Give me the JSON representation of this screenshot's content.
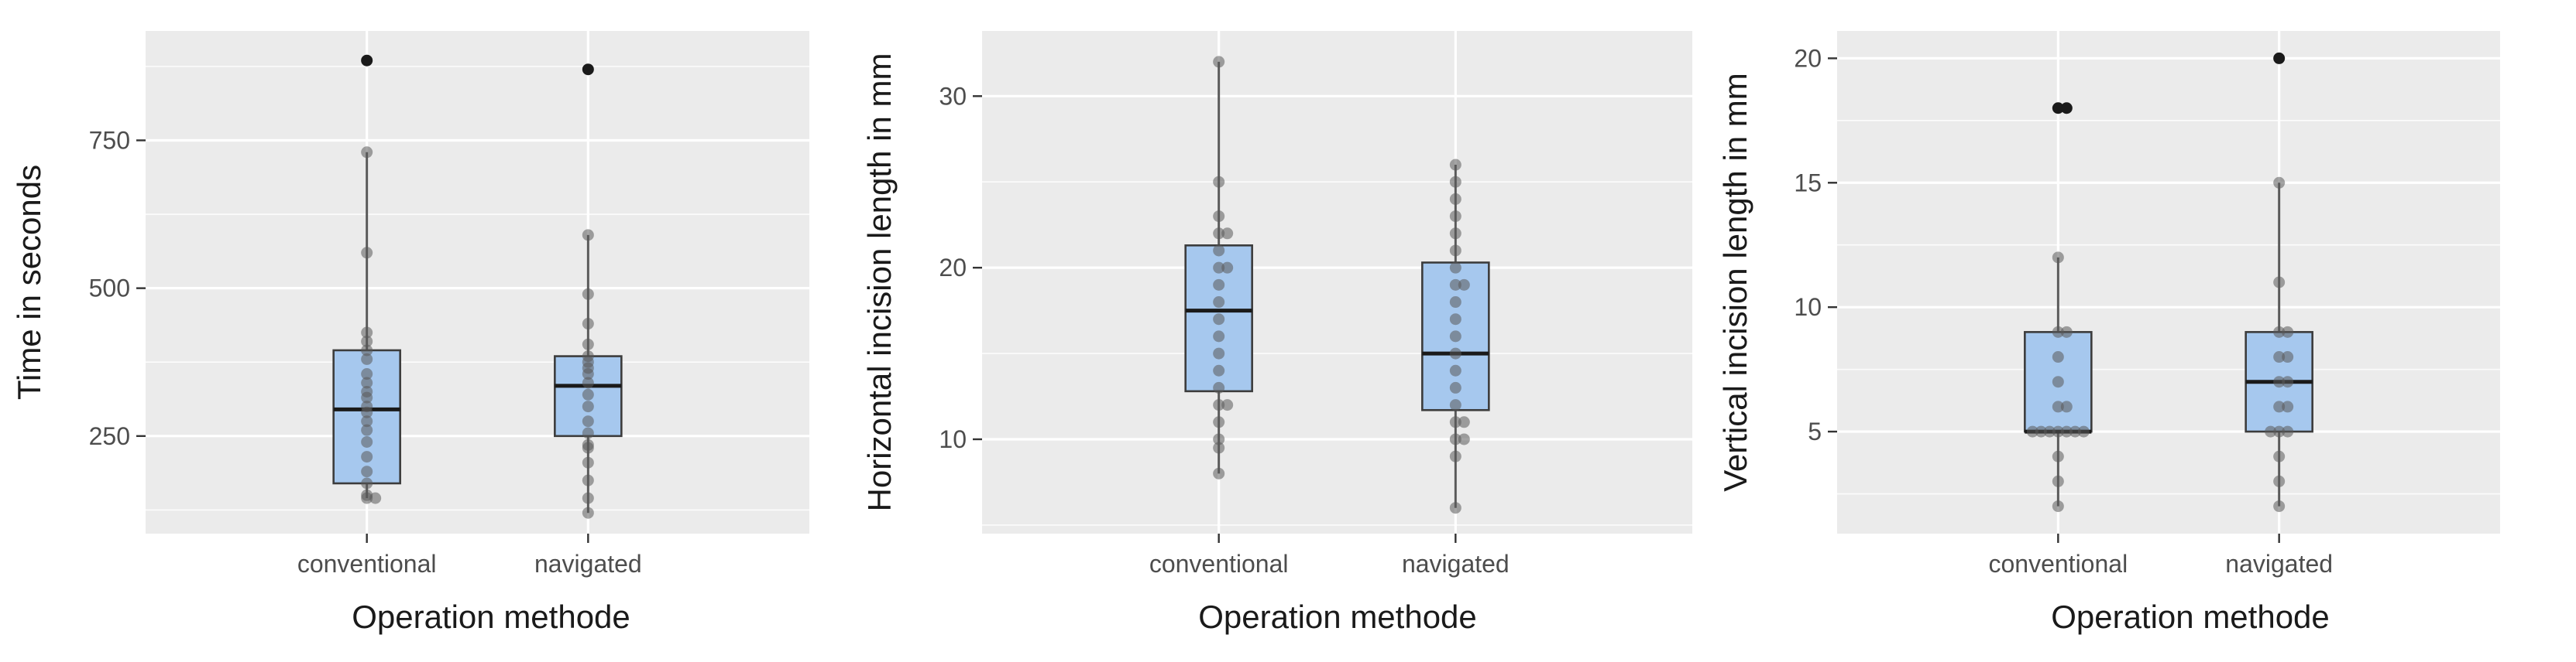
{
  "chart_data": [
    {
      "type": "box",
      "xlabel": "Operation methode",
      "ylabel": "Time in seconds",
      "categories": [
        "conventional",
        "navigated"
      ],
      "ylim": [
        85,
        935
      ],
      "y_ticks": [
        250,
        500,
        750
      ],
      "minor_ticks": [
        125,
        375,
        625,
        875
      ],
      "boxes": [
        {
          "q1": 170,
          "median": 295,
          "q3": 395,
          "whisker_low": 145,
          "whisker_high": 730,
          "outliers": [
            885
          ],
          "points": [
            145,
            145,
            150,
            170,
            190,
            215,
            240,
            260,
            275,
            290,
            300,
            315,
            325,
            340,
            355,
            380,
            395,
            410,
            425,
            560,
            730
          ]
        },
        {
          "q1": 250,
          "median": 335,
          "q3": 385,
          "whisker_low": 120,
          "whisker_high": 590,
          "outliers": [
            870
          ],
          "points": [
            120,
            145,
            175,
            205,
            230,
            235,
            255,
            275,
            300,
            320,
            340,
            355,
            365,
            375,
            385,
            405,
            440,
            490,
            590
          ]
        }
      ]
    },
    {
      "type": "box",
      "xlabel": "Operation methode",
      "ylabel": "Horizontal incision length in mm",
      "categories": [
        "conventional",
        "navigated"
      ],
      "ylim": [
        4.5,
        33.8
      ],
      "y_ticks": [
        10,
        20,
        30
      ],
      "minor_ticks": [
        5,
        15,
        25
      ],
      "boxes": [
        {
          "q1": 12.8,
          "median": 17.5,
          "q3": 21.3,
          "whisker_low": 8,
          "whisker_high": 32,
          "outliers": [],
          "points": [
            8,
            9.5,
            10,
            11,
            12,
            12,
            13,
            14,
            15,
            16,
            17,
            18,
            19,
            20,
            20,
            21,
            22,
            22,
            23,
            25,
            32
          ]
        },
        {
          "q1": 11.7,
          "median": 15,
          "q3": 20.3,
          "whisker_low": 6,
          "whisker_high": 26,
          "outliers": [],
          "points": [
            6,
            9,
            10,
            10,
            11,
            11,
            12,
            13,
            14,
            15,
            16,
            17,
            18,
            19,
            19,
            20,
            21,
            22,
            23,
            24,
            25,
            26
          ]
        }
      ]
    },
    {
      "type": "box",
      "xlabel": "Operation methode",
      "ylabel": "Vertical incision length in mm",
      "categories": [
        "conventional",
        "navigated"
      ],
      "ylim": [
        0.9,
        21.1
      ],
      "y_ticks": [
        5,
        10,
        15,
        20
      ],
      "minor_ticks": [
        2.5,
        7.5,
        12.5,
        17.5
      ],
      "boxes": [
        {
          "q1": 5,
          "median": 5,
          "q3": 9,
          "whisker_low": 2,
          "whisker_high": 12,
          "outliers": [
            18,
            18
          ],
          "points": [
            2,
            3,
            4,
            5,
            5,
            5,
            5,
            5,
            5,
            5,
            6,
            6,
            7,
            8,
            9,
            9,
            12
          ]
        },
        {
          "q1": 5,
          "median": 7,
          "q3": 9,
          "whisker_low": 2,
          "whisker_high": 15,
          "outliers": [
            20
          ],
          "points": [
            2,
            3,
            4,
            5,
            5,
            5,
            6,
            6,
            7,
            7,
            8,
            8,
            9,
            9,
            11,
            15
          ]
        }
      ]
    }
  ]
}
